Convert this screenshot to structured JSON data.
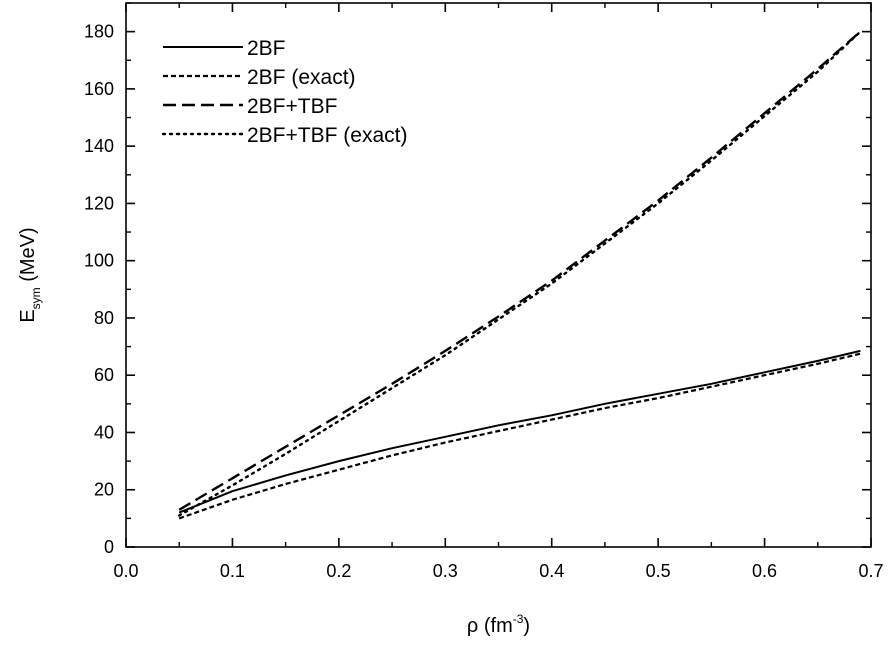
{
  "chart_data": {
    "type": "line",
    "title": "",
    "xlabel": {
      "base": "ρ (fm",
      "sup": "-3",
      "suffix": ")"
    },
    "ylabel": {
      "base": "E",
      "sub": "sym",
      "suffix": " (MeV)"
    },
    "xlim": [
      0.0,
      0.7
    ],
    "ylim": [
      0,
      190
    ],
    "xticks": [
      0.0,
      0.1,
      0.2,
      0.3,
      0.4,
      0.5,
      0.6,
      0.7
    ],
    "xtick_labels": [
      "0.0",
      "0.1",
      "0.2",
      "0.3",
      "0.4",
      "0.5",
      "0.6",
      "0.7"
    ],
    "yticks": [
      0,
      20,
      40,
      60,
      80,
      100,
      120,
      140,
      160,
      180
    ],
    "ytick_labels": [
      "0",
      "20",
      "40",
      "60",
      "80",
      "100",
      "120",
      "140",
      "160",
      "180"
    ],
    "grid": false,
    "legend_position": "top-left",
    "series": [
      {
        "name": "2BF",
        "style": "solid",
        "x": [
          0.05,
          0.1,
          0.15,
          0.2,
          0.25,
          0.3,
          0.35,
          0.4,
          0.45,
          0.5,
          0.55,
          0.6,
          0.65,
          0.69
        ],
        "y": [
          12,
          19.5,
          25,
          30,
          34.5,
          38.5,
          42.5,
          46,
          50,
          53.5,
          57,
          61,
          65,
          68.5
        ]
      },
      {
        "name": "2BF (exact)",
        "style": "short-dash",
        "x": [
          0.05,
          0.1,
          0.15,
          0.2,
          0.25,
          0.3,
          0.35,
          0.4,
          0.45,
          0.5,
          0.55,
          0.6,
          0.65,
          0.69
        ],
        "y": [
          10,
          16.5,
          22,
          27,
          32,
          36.5,
          40.5,
          44.5,
          48.5,
          52,
          56,
          60,
          64,
          67.5
        ]
      },
      {
        "name": "2BF+TBF",
        "style": "long-dash",
        "x": [
          0.05,
          0.1,
          0.15,
          0.2,
          0.25,
          0.3,
          0.35,
          0.4,
          0.45,
          0.5,
          0.55,
          0.6,
          0.65,
          0.69
        ],
        "y": [
          13,
          24,
          35,
          46,
          57,
          68.5,
          80.5,
          93,
          107,
          121,
          136,
          151.5,
          167,
          180
        ]
      },
      {
        "name": "2BF+TBF (exact)",
        "style": "dotted",
        "x": [
          0.05,
          0.1,
          0.15,
          0.2,
          0.25,
          0.3,
          0.35,
          0.4,
          0.45,
          0.5,
          0.55,
          0.6,
          0.65,
          0.69
        ],
        "y": [
          11,
          21.5,
          32.5,
          44,
          55.5,
          67,
          79.5,
          92,
          106,
          120,
          135,
          150.5,
          166,
          180
        ]
      }
    ]
  }
}
